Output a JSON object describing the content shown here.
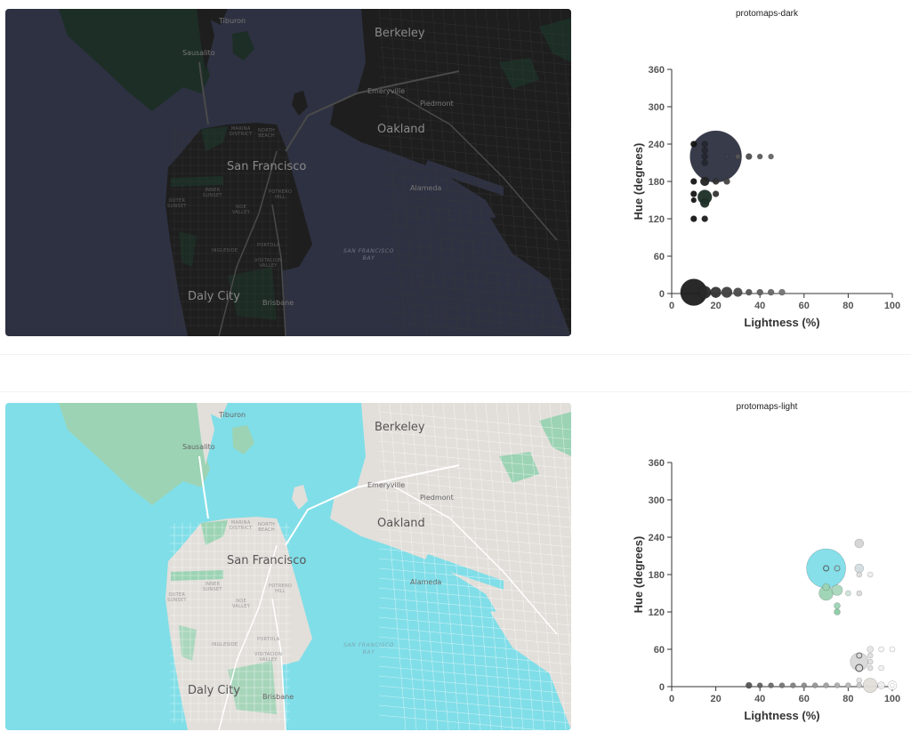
{
  "panels": [
    {
      "id": "dark",
      "title": "protomaps-dark",
      "map": {
        "colors": {
          "water": "#2e3141",
          "land": "#1e1e1e",
          "park": "#1c2e26",
          "road": "#3a3a3a",
          "major_road": "#4a4a4a"
        },
        "labels": {
          "tiburon": "Tiburon",
          "sausalito": "Sausalito",
          "berkeley": "Berkeley",
          "emeryville": "Emeryville",
          "piedmont": "Piedmont",
          "oakland": "Oakland",
          "alameda": "Alameda",
          "san_francisco": "San Francisco",
          "marina": "MARINA DISTRICT",
          "north_beach": "NORTH BEACH",
          "inner_sunset": "INNER SUNSET",
          "outer_sunset": "OUTER SUNSET",
          "noe_valley": "NOE VALLEY",
          "potrero": "POTRERO HILL",
          "portola": "PORTOLA",
          "ingleside": "INGLESIDE",
          "visitacion": "VISITACION VALLEY",
          "bay": "SAN FRANCISCO BAY",
          "daly_city": "Daly City",
          "brisbane": "Brisbane"
        }
      }
    },
    {
      "id": "light",
      "title": "protomaps-light",
      "map": {
        "colors": {
          "water": "#80dee8",
          "land": "#e2dfda",
          "park": "#9cd3b4",
          "road": "#ffffff",
          "major_road": "#ffffff"
        },
        "labels": {
          "tiburon": "Tiburon",
          "sausalito": "Sausalito",
          "berkeley": "Berkeley",
          "emeryville": "Emeryville",
          "piedmont": "Piedmont",
          "oakland": "Oakland",
          "alameda": "Alameda",
          "san_francisco": "San Francisco",
          "marina": "MARINA DISTRICT",
          "north_beach": "NORTH BEACH",
          "inner_sunset": "INNER SUNSET",
          "outer_sunset": "OUTER SUNSET",
          "noe_valley": "NOE VALLEY",
          "potrero": "POTRERO HILL",
          "portola": "PORTOLA",
          "ingleside": "INGLESIDE",
          "visitacion": "VISITACION VALLEY",
          "bay": "SAN FRANCISCO BAY",
          "daly_city": "Daly City",
          "brisbane": "Brisbane"
        }
      }
    }
  ],
  "chart_data": [
    {
      "type": "scatter",
      "title": "protomaps-dark",
      "xlabel": "Lightness (%)",
      "ylabel": "Hue (degrees)",
      "xlim": [
        0,
        100
      ],
      "ylim": [
        0,
        360
      ],
      "xticks": [
        0,
        20,
        40,
        60,
        80,
        100
      ],
      "yticks": [
        0,
        60,
        120,
        180,
        240,
        300,
        360
      ],
      "grid": false,
      "legend": "none",
      "points": [
        {
          "x": 20,
          "y": 220,
          "r": 29,
          "color": "#2e3141"
        },
        {
          "x": 10,
          "y": 2,
          "r": 15,
          "color": "#1e1e1e"
        },
        {
          "x": 15,
          "y": 2,
          "r": 7,
          "color": "#2a2a2a"
        },
        {
          "x": 20,
          "y": 2,
          "r": 6,
          "color": "#353535"
        },
        {
          "x": 25,
          "y": 2,
          "r": 6,
          "color": "#404040"
        },
        {
          "x": 30,
          "y": 2,
          "r": 5,
          "color": "#4a4a4a"
        },
        {
          "x": 35,
          "y": 2,
          "r": 3.5,
          "color": "#555555"
        },
        {
          "x": 40,
          "y": 2,
          "r": 3.5,
          "color": "#5f5f5f"
        },
        {
          "x": 45,
          "y": 2,
          "r": 3.5,
          "color": "#696969"
        },
        {
          "x": 50,
          "y": 2,
          "r": 3.5,
          "color": "#737373"
        },
        {
          "x": 15,
          "y": 155,
          "r": 8,
          "color": "#1c2e26"
        },
        {
          "x": 15,
          "y": 145,
          "r": 5,
          "color": "#1f3028"
        },
        {
          "x": 10,
          "y": 240,
          "r": 3.5,
          "color": "#151515"
        },
        {
          "x": 15,
          "y": 240,
          "r": 3.5,
          "color": "#252830"
        },
        {
          "x": 15,
          "y": 230,
          "r": 3.5,
          "color": "#252830"
        },
        {
          "x": 15,
          "y": 220,
          "r": 3.5,
          "color": "#252830"
        },
        {
          "x": 15,
          "y": 210,
          "r": 3.5,
          "color": "#252830"
        },
        {
          "x": 25,
          "y": 220,
          "r": 3,
          "color": "#3d4050"
        },
        {
          "x": 30,
          "y": 220,
          "r": 3,
          "color": "#555555"
        },
        {
          "x": 35,
          "y": 220,
          "r": 3.5,
          "color": "#4d4d4d"
        },
        {
          "x": 40,
          "y": 220,
          "r": 3,
          "color": "#5a5a5a"
        },
        {
          "x": 45,
          "y": 220,
          "r": 3,
          "color": "#666666"
        },
        {
          "x": 10,
          "y": 180,
          "r": 3.5,
          "color": "#151515"
        },
        {
          "x": 15,
          "y": 180,
          "r": 5,
          "color": "#222222"
        },
        {
          "x": 20,
          "y": 180,
          "r": 3.5,
          "color": "#333333"
        },
        {
          "x": 25,
          "y": 180,
          "r": 3.5,
          "color": "#444444"
        },
        {
          "x": 10,
          "y": 160,
          "r": 3.5,
          "color": "#151515"
        },
        {
          "x": 20,
          "y": 160,
          "r": 3.5,
          "color": "#333333"
        },
        {
          "x": 10,
          "y": 150,
          "r": 3,
          "color": "#151515"
        },
        {
          "x": 10,
          "y": 120,
          "r": 3.5,
          "color": "#151515"
        },
        {
          "x": 15,
          "y": 120,
          "r": 3.5,
          "color": "#1c1c1c"
        }
      ]
    },
    {
      "type": "scatter",
      "title": "protomaps-light",
      "xlabel": "Lightness (%)",
      "ylabel": "Hue (degrees)",
      "xlim": [
        0,
        100
      ],
      "ylim": [
        0,
        360
      ],
      "xticks": [
        0,
        20,
        40,
        60,
        80,
        100
      ],
      "yticks": [
        0,
        60,
        120,
        180,
        240,
        300,
        360
      ],
      "grid": false,
      "legend": "none",
      "points": [
        {
          "x": 70,
          "y": 190,
          "r": 22,
          "color": "#80dee8"
        },
        {
          "x": 70,
          "y": 150,
          "r": 8,
          "color": "#9cd3b4"
        },
        {
          "x": 75,
          "y": 155,
          "r": 6,
          "color": "#a8d8bd"
        },
        {
          "x": 70,
          "y": 160,
          "r": 4,
          "color": "#9cd3b4"
        },
        {
          "x": 75,
          "y": 130,
          "r": 3.5,
          "color": "#9cd3b4"
        },
        {
          "x": 75,
          "y": 120,
          "r": 3.5,
          "color": "#8ccba5"
        },
        {
          "x": 80,
          "y": 150,
          "r": 3,
          "color": "#cfe3d8"
        },
        {
          "x": 85,
          "y": 150,
          "r": 3,
          "color": "#dcdcdc"
        },
        {
          "x": 70,
          "y": 190,
          "r": 3,
          "color": "#80dee8",
          "stroke": "#555"
        },
        {
          "x": 75,
          "y": 190,
          "r": 3,
          "color": "#80dee8",
          "stroke": "#777"
        },
        {
          "x": 85,
          "y": 230,
          "r": 5,
          "color": "#d4d4d4"
        },
        {
          "x": 85,
          "y": 190,
          "r": 5,
          "color": "#d3dde0"
        },
        {
          "x": 85,
          "y": 180,
          "r": 3,
          "color": "#dcdcdc"
        },
        {
          "x": 90,
          "y": 180,
          "r": 3,
          "color": "#eeeeee"
        },
        {
          "x": 85,
          "y": 40,
          "r": 10,
          "color": "#d9d9d9"
        },
        {
          "x": 85,
          "y": 50,
          "r": 3,
          "color": "#d9d9d9",
          "stroke": "#666"
        },
        {
          "x": 85,
          "y": 30,
          "r": 4,
          "color": "#d9d9d9",
          "stroke": "#444"
        },
        {
          "x": 90,
          "y": 60,
          "r": 3.5,
          "color": "#e5e5e5"
        },
        {
          "x": 90,
          "y": 50,
          "r": 3,
          "color": "#e0e0e0"
        },
        {
          "x": 90,
          "y": 40,
          "r": 3,
          "color": "#e0e0e0"
        },
        {
          "x": 90,
          "y": 30,
          "r": 3,
          "color": "#e0e0e0"
        },
        {
          "x": 95,
          "y": 60,
          "r": 3,
          "color": "#f5f5f5"
        },
        {
          "x": 100,
          "y": 60,
          "r": 3,
          "color": "#fafafa"
        },
        {
          "x": 95,
          "y": 30,
          "r": 3,
          "color": "#f2f2f2"
        },
        {
          "x": 85,
          "y": 10,
          "r": 3,
          "color": "#e2e2e2"
        },
        {
          "x": 90,
          "y": 2,
          "r": 8,
          "color": "#e2dfda"
        },
        {
          "x": 95,
          "y": 2,
          "r": 4,
          "color": "#eeeeee"
        },
        {
          "x": 100,
          "y": 2,
          "r": 5,
          "color": "#ffffff"
        },
        {
          "x": 100,
          "y": 2,
          "r": 2.5,
          "color": "#ffffff"
        },
        {
          "x": 35,
          "y": 2,
          "r": 3.5,
          "color": "#555555"
        },
        {
          "x": 40,
          "y": 2,
          "r": 3,
          "color": "#606060"
        },
        {
          "x": 45,
          "y": 2,
          "r": 3,
          "color": "#6b6b6b"
        },
        {
          "x": 50,
          "y": 2,
          "r": 3,
          "color": "#767676"
        },
        {
          "x": 55,
          "y": 2,
          "r": 3,
          "color": "#818181"
        },
        {
          "x": 60,
          "y": 2,
          "r": 3,
          "color": "#8c8c8c"
        },
        {
          "x": 65,
          "y": 2,
          "r": 3,
          "color": "#979797"
        },
        {
          "x": 70,
          "y": 2,
          "r": 3,
          "color": "#a2a2a2"
        },
        {
          "x": 75,
          "y": 2,
          "r": 3,
          "color": "#adadad"
        },
        {
          "x": 80,
          "y": 2,
          "r": 3,
          "color": "#b8b8b8"
        },
        {
          "x": 85,
          "y": 2,
          "r": 3,
          "color": "#c8c8c8"
        }
      ]
    }
  ]
}
